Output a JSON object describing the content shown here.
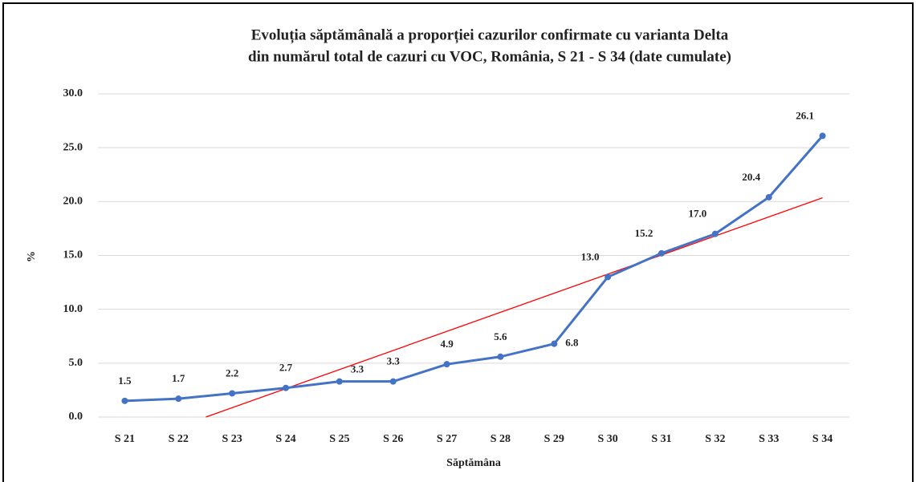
{
  "chart_data": {
    "type": "line",
    "title": [
      "Evoluția săptămânală a proporției cazurilor confirmate cu varianta Delta",
      "din numărul total de cazuri cu VOC, România, S 21 - S 34 (date cumulate)"
    ],
    "x_label": "Săptămâna",
    "y_label": "%",
    "categories": [
      "S 21",
      "S 22",
      "S 23",
      "S 24",
      "S 25",
      "S 26",
      "S 27",
      "S 28",
      "S 29",
      "S 30",
      "S 31",
      "S 32",
      "S 33",
      "S 34"
    ],
    "series": [
      {
        "color": "#4472c4",
        "values": [
          1.5,
          1.7,
          2.2,
          2.7,
          3.3,
          3.3,
          4.9,
          5.6,
          6.8,
          13.0,
          15.2,
          17.0,
          20.4,
          26.1
        ],
        "value_labels": [
          "1.5",
          "1.7",
          "2.2",
          "2.7",
          "3.3",
          "3.3",
          "4.9",
          "5.6",
          "6.8",
          "13.0",
          "15.2",
          "17.0",
          "20.4",
          "26.1"
        ]
      }
    ],
    "trendline": {
      "type": "linear",
      "color": "#ff0000"
    },
    "ylim": [
      0,
      30
    ],
    "yticks": [
      {
        "value": 0,
        "label": "0.0"
      },
      {
        "value": 5,
        "label": "5.0"
      },
      {
        "value": 10,
        "label": "10.0"
      },
      {
        "value": 15,
        "label": "15.0"
      },
      {
        "value": 20,
        "label": "20.0"
      },
      {
        "value": 25,
        "label": "25.0"
      },
      {
        "value": 30,
        "label": "30.0"
      }
    ],
    "grid": true
  }
}
